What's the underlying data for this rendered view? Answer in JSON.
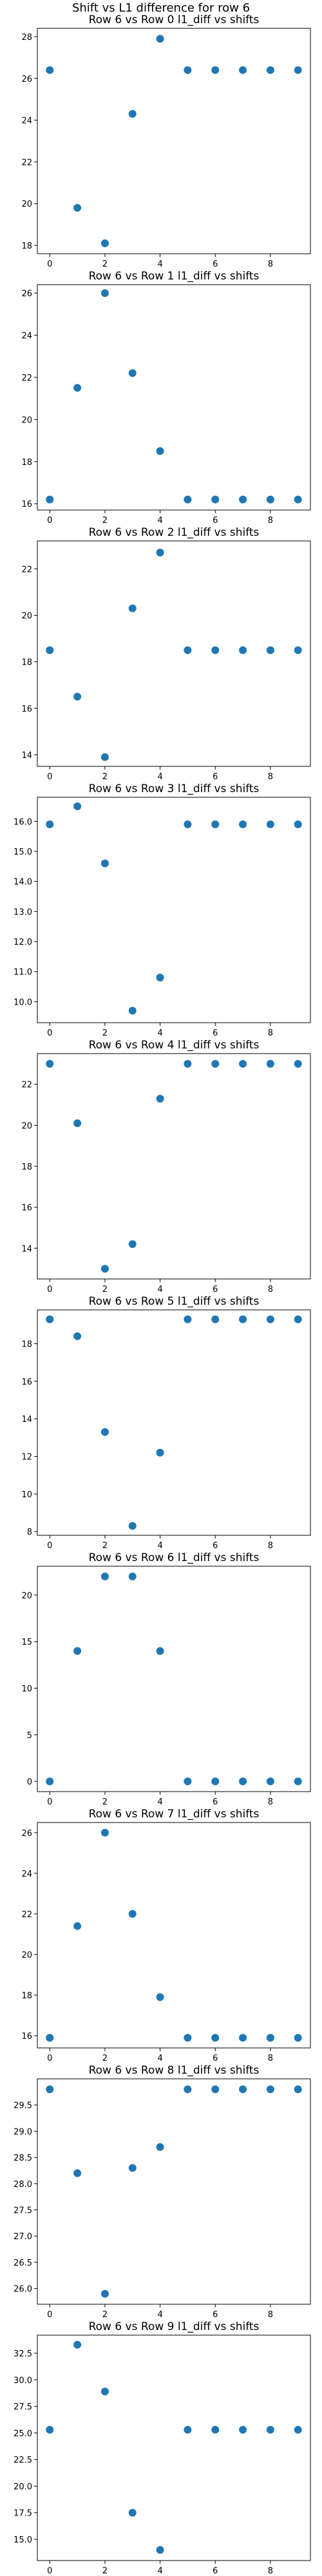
{
  "suptitle": "Shift vs L1 difference for row 6",
  "colors": {
    "marker": "#1f77b4",
    "axes": "#000000"
  },
  "chart_data": [
    {
      "type": "scatter",
      "title": "Row 6 vs Row 0 l1_diff vs shifts",
      "x": [
        0,
        1,
        2,
        3,
        4,
        5,
        6,
        7,
        8,
        9
      ],
      "y": [
        26.4,
        19.8,
        18.1,
        24.3,
        27.9,
        26.4,
        26.4,
        26.4,
        26.4,
        26.4
      ],
      "ylim": [
        17.6,
        28.4
      ],
      "yticks": [
        18,
        20,
        22,
        24,
        26,
        28
      ],
      "ytick_labels": [
        "18",
        "20",
        "22",
        "24",
        "26",
        "28"
      ],
      "xticks": [
        0,
        2,
        4,
        6,
        8
      ],
      "xtick_labels": [
        "0",
        "2",
        "4",
        "6",
        "8"
      ],
      "xlim": [
        -0.45,
        9.45
      ]
    },
    {
      "type": "scatter",
      "title": "Row 6 vs Row 1 l1_diff vs shifts",
      "x": [
        0,
        1,
        2,
        3,
        4,
        5,
        6,
        7,
        8,
        9
      ],
      "y": [
        16.2,
        21.5,
        26.0,
        22.2,
        18.5,
        16.2,
        16.2,
        16.2,
        16.2,
        16.2
      ],
      "ylim": [
        15.7,
        26.4
      ],
      "yticks": [
        16,
        18,
        20,
        22,
        24,
        26
      ],
      "ytick_labels": [
        "16",
        "18",
        "20",
        "22",
        "24",
        "26"
      ],
      "xticks": [
        0,
        2,
        4,
        6,
        8
      ],
      "xtick_labels": [
        "0",
        "2",
        "4",
        "6",
        "8"
      ],
      "xlim": [
        -0.45,
        9.45
      ]
    },
    {
      "type": "scatter",
      "title": "Row 6 vs Row 2 l1_diff vs shifts",
      "x": [
        0,
        1,
        2,
        3,
        4,
        5,
        6,
        7,
        8,
        9
      ],
      "y": [
        18.5,
        16.5,
        13.9,
        20.3,
        22.7,
        18.5,
        18.5,
        18.5,
        18.5,
        18.5
      ],
      "ylim": [
        13.5,
        23.2
      ],
      "yticks": [
        14,
        16,
        18,
        20,
        22
      ],
      "ytick_labels": [
        "14",
        "16",
        "18",
        "20",
        "22"
      ],
      "xticks": [
        0,
        2,
        4,
        6,
        8
      ],
      "xtick_labels": [
        "0",
        "2",
        "4",
        "6",
        "8"
      ],
      "xlim": [
        -0.45,
        9.45
      ]
    },
    {
      "type": "scatter",
      "title": "Row 6 vs Row 3 l1_diff vs shifts",
      "x": [
        0,
        1,
        2,
        3,
        4,
        5,
        6,
        7,
        8,
        9
      ],
      "y": [
        15.9,
        16.5,
        14.6,
        9.7,
        10.8,
        15.9,
        15.9,
        15.9,
        15.9,
        15.9
      ],
      "ylim": [
        9.3,
        16.8
      ],
      "yticks": [
        10.0,
        11.0,
        12.0,
        13.0,
        14.0,
        15.0,
        16.0
      ],
      "ytick_labels": [
        "10.0",
        "11.0",
        "12.0",
        "13.0",
        "14.0",
        "15.0",
        "16.0"
      ],
      "xticks": [
        0,
        2,
        4,
        6,
        8
      ],
      "xtick_labels": [
        "0",
        "2",
        "4",
        "6",
        "8"
      ],
      "xlim": [
        -0.45,
        9.45
      ]
    },
    {
      "type": "scatter",
      "title": "Row 6 vs Row 4 l1_diff vs shifts",
      "x": [
        0,
        1,
        2,
        3,
        4,
        5,
        6,
        7,
        8,
        9
      ],
      "y": [
        23.0,
        20.1,
        13.0,
        14.2,
        21.3,
        23.0,
        23.0,
        23.0,
        23.0,
        23.0
      ],
      "ylim": [
        12.5,
        23.5
      ],
      "yticks": [
        14,
        16,
        18,
        20,
        22
      ],
      "ytick_labels": [
        "14",
        "16",
        "18",
        "20",
        "22"
      ],
      "xticks": [
        0,
        2,
        4,
        6,
        8
      ],
      "xtick_labels": [
        "0",
        "2",
        "4",
        "6",
        "8"
      ],
      "xlim": [
        -0.45,
        9.45
      ]
    },
    {
      "type": "scatter",
      "title": "Row 6 vs Row 5 l1_diff vs shifts",
      "x": [
        0,
        1,
        2,
        3,
        4,
        5,
        6,
        7,
        8,
        9
      ],
      "y": [
        19.3,
        18.4,
        13.3,
        8.3,
        12.2,
        19.3,
        19.3,
        19.3,
        19.3,
        19.3
      ],
      "ylim": [
        7.8,
        19.8
      ],
      "yticks": [
        8,
        10,
        12,
        14,
        16,
        18
      ],
      "ytick_labels": [
        "8",
        "10",
        "12",
        "14",
        "16",
        "18"
      ],
      "xticks": [
        0,
        2,
        4,
        6,
        8
      ],
      "xtick_labels": [
        "0",
        "2",
        "4",
        "6",
        "8"
      ],
      "xlim": [
        -0.45,
        9.45
      ]
    },
    {
      "type": "scatter",
      "title": "Row 6 vs Row 6 l1_diff vs shifts",
      "x": [
        0,
        1,
        2,
        3,
        4,
        5,
        6,
        7,
        8,
        9
      ],
      "y": [
        0,
        14,
        22,
        22,
        14,
        0,
        0,
        0,
        0,
        0
      ],
      "ylim": [
        -1.1,
        23.1
      ],
      "yticks": [
        0,
        5,
        10,
        15,
        20
      ],
      "ytick_labels": [
        "0",
        "5",
        "10",
        "15",
        "20"
      ],
      "xticks": [
        0,
        2,
        4,
        6,
        8
      ],
      "xtick_labels": [
        "0",
        "2",
        "4",
        "6",
        "8"
      ],
      "xlim": [
        -0.45,
        9.45
      ]
    },
    {
      "type": "scatter",
      "title": "Row 6 vs Row 7 l1_diff vs shifts",
      "x": [
        0,
        1,
        2,
        3,
        4,
        5,
        6,
        7,
        8,
        9
      ],
      "y": [
        15.9,
        21.4,
        26.0,
        22.0,
        17.9,
        15.9,
        15.9,
        15.9,
        15.9,
        15.9
      ],
      "ylim": [
        15.4,
        26.5
      ],
      "yticks": [
        16,
        18,
        20,
        22,
        24,
        26
      ],
      "ytick_labels": [
        "16",
        "18",
        "20",
        "22",
        "24",
        "26"
      ],
      "xticks": [
        0,
        2,
        4,
        6,
        8
      ],
      "xtick_labels": [
        "0",
        "2",
        "4",
        "6",
        "8"
      ],
      "xlim": [
        -0.45,
        9.45
      ]
    },
    {
      "type": "scatter",
      "title": "Row 6 vs Row 8 l1_diff vs shifts",
      "x": [
        0,
        1,
        2,
        3,
        4,
        5,
        6,
        7,
        8,
        9
      ],
      "y": [
        29.8,
        28.2,
        25.9,
        28.3,
        28.7,
        29.8,
        29.8,
        29.8,
        29.8,
        29.8
      ],
      "ylim": [
        25.7,
        30.0
      ],
      "yticks": [
        26.0,
        26.5,
        27.0,
        27.5,
        28.0,
        28.5,
        29.0,
        29.5
      ],
      "ytick_labels": [
        "26.0",
        "26.5",
        "27.0",
        "27.5",
        "28.0",
        "28.5",
        "29.0",
        "29.5"
      ],
      "xticks": [
        0,
        2,
        4,
        6,
        8
      ],
      "xtick_labels": [
        "0",
        "2",
        "4",
        "6",
        "8"
      ],
      "xlim": [
        -0.45,
        9.45
      ]
    },
    {
      "type": "scatter",
      "title": "Row 6 vs Row 9 l1_diff vs shifts",
      "x": [
        0,
        1,
        2,
        3,
        4,
        5,
        6,
        7,
        8,
        9
      ],
      "y": [
        25.3,
        33.3,
        28.9,
        17.5,
        14.0,
        25.3,
        25.3,
        25.3,
        25.3,
        25.3
      ],
      "ylim": [
        13.0,
        34.2
      ],
      "yticks": [
        15.0,
        17.5,
        20.0,
        22.5,
        25.0,
        27.5,
        30.0,
        32.5
      ],
      "ytick_labels": [
        "15.0",
        "17.5",
        "20.0",
        "22.5",
        "25.0",
        "27.5",
        "30.0",
        "32.5"
      ],
      "xticks": [
        0,
        2,
        4,
        6,
        8
      ],
      "xtick_labels": [
        "0",
        "2",
        "4",
        "6",
        "8"
      ],
      "xlim": [
        -0.45,
        9.45
      ]
    }
  ]
}
